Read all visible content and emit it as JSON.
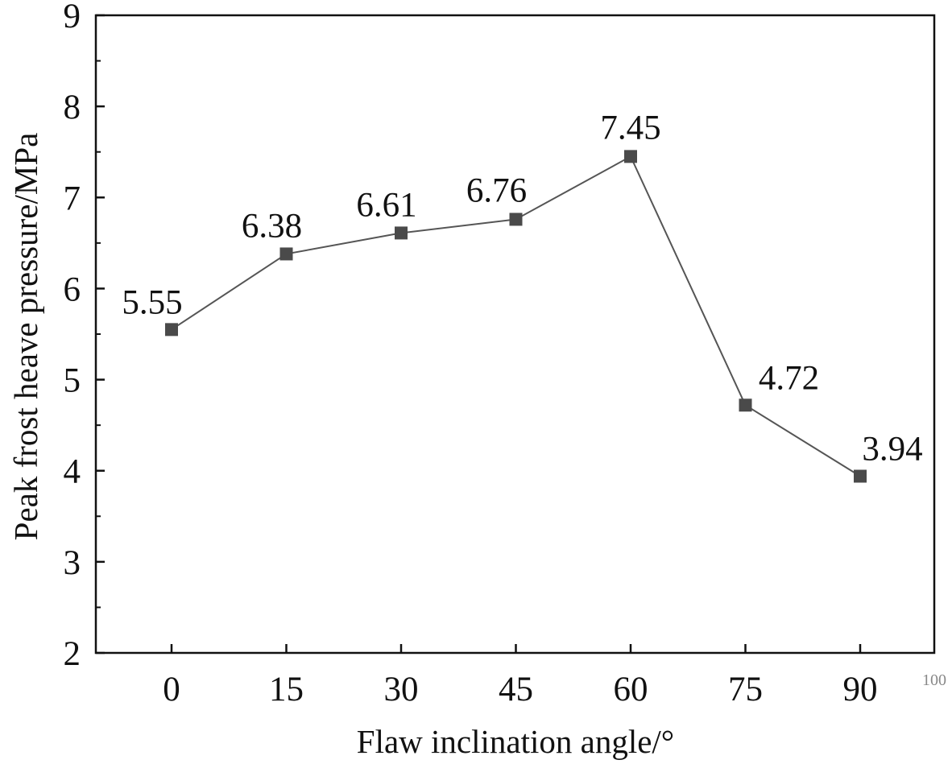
{
  "chart_data": {
    "type": "line",
    "x": [
      0,
      15,
      30,
      45,
      60,
      75,
      90
    ],
    "y": [
      5.55,
      6.38,
      6.61,
      6.76,
      7.45,
      4.72,
      3.94
    ],
    "data_labels": [
      "5.55",
      "6.38",
      "6.61",
      "6.76",
      "7.45",
      "4.72",
      "3.94"
    ],
    "xlabel": "Flaw inclination angle/°",
    "ylabel": "Peak frost heave pressure/MPa",
    "ylim": [
      2,
      9
    ],
    "xticks": [
      "0",
      "15",
      "30",
      "45",
      "60",
      "75",
      "90"
    ],
    "yticks": [
      "2",
      "3",
      "4",
      "5",
      "6",
      "7",
      "8",
      "9"
    ],
    "marker": "square",
    "line_color": "#555555",
    "marker_color": "#4a4a4a",
    "grid": false,
    "annotation": "100"
  }
}
